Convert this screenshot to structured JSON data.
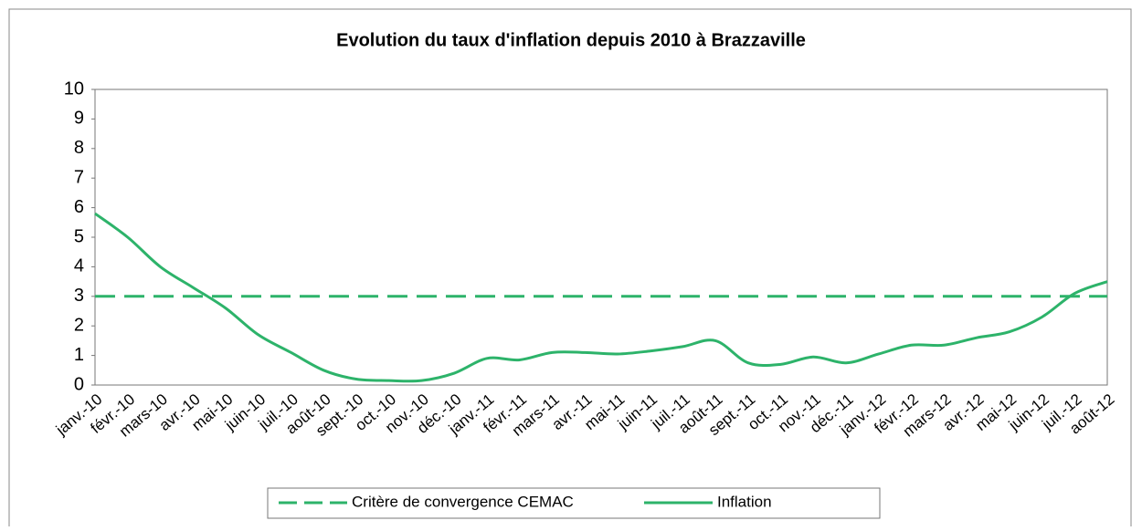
{
  "chart_data": {
    "type": "line",
    "title": "Evolution du taux d'inflation depuis 2010 à Brazzaville",
    "categories": [
      "janv.-10",
      "févr.-10",
      "mars-10",
      "avr.-10",
      "mai-10",
      "juin-10",
      "juil.-10",
      "août-10",
      "sept.-10",
      "oct.-10",
      "nov.-10",
      "déc.-10",
      "janv.-11",
      "févr.-11",
      "mars-11",
      "avr.-11",
      "mai-11",
      "juin-11",
      "juil.-11",
      "août-11",
      "sept.-11",
      "oct.-11",
      "nov.-11",
      "déc.-11",
      "janv.-12",
      "févr.-12",
      "mars-12",
      "avr.-12",
      "mai-12",
      "juin-12",
      "juil.-12",
      "août-12"
    ],
    "series": [
      {
        "name": "Critère de convergence CEMAC",
        "color": "#2db36a",
        "dashed": true,
        "values": [
          3,
          3,
          3,
          3,
          3,
          3,
          3,
          3,
          3,
          3,
          3,
          3,
          3,
          3,
          3,
          3,
          3,
          3,
          3,
          3,
          3,
          3,
          3,
          3,
          3,
          3,
          3,
          3,
          3,
          3,
          3,
          3
        ]
      },
      {
        "name": "Inflation",
        "color": "#2db36a",
        "dashed": false,
        "values": [
          5.8,
          5.0,
          4.0,
          3.3,
          2.6,
          1.7,
          1.1,
          0.5,
          0.2,
          0.15,
          0.15,
          0.4,
          0.9,
          0.85,
          1.1,
          1.1,
          1.05,
          1.15,
          1.3,
          1.5,
          0.75,
          0.7,
          0.95,
          0.75,
          1.05,
          1.35,
          1.35,
          1.6,
          1.8,
          2.3,
          3.1,
          3.5
        ]
      }
    ],
    "ylim": [
      0,
      10
    ],
    "yticks": [
      0,
      1,
      2,
      3,
      4,
      5,
      6,
      7,
      8,
      9,
      10
    ],
    "legend": "bottom"
  }
}
